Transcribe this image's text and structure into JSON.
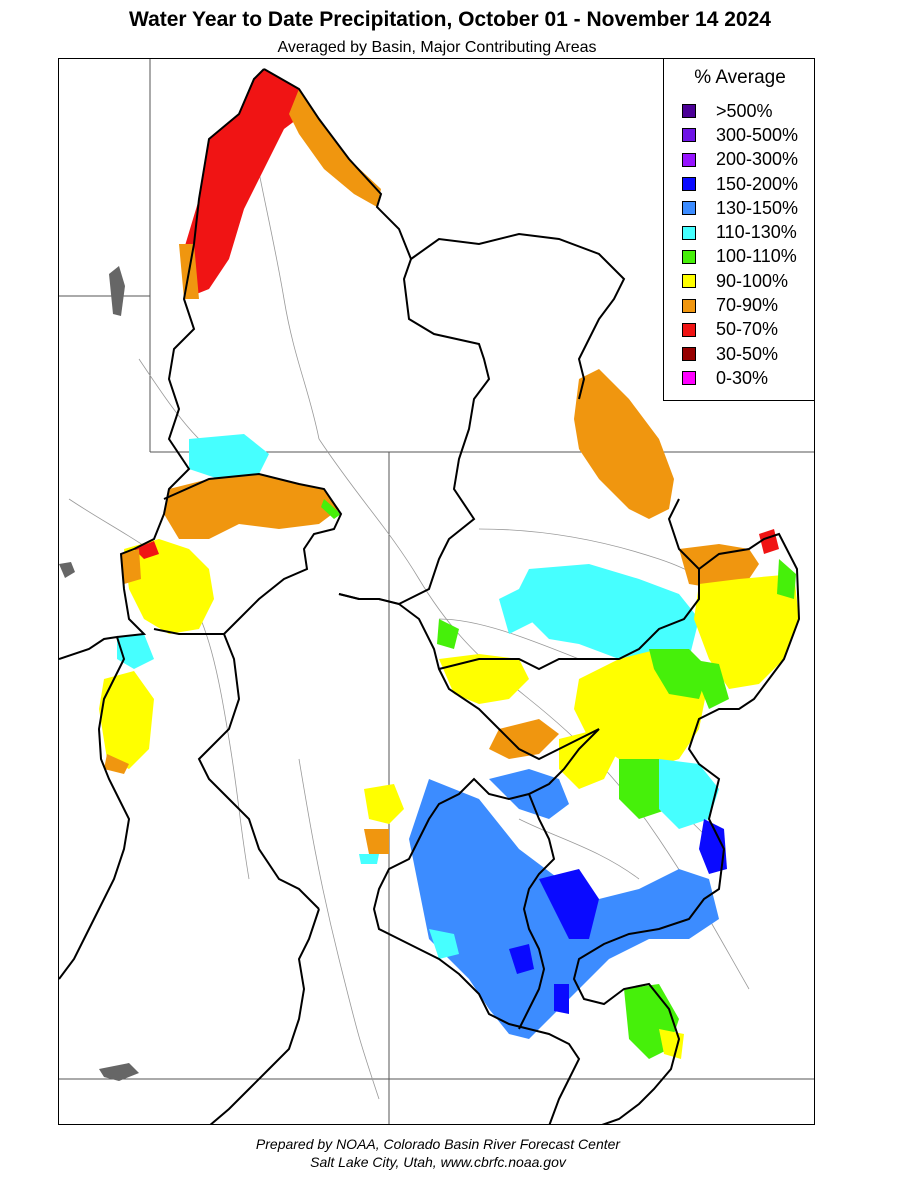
{
  "title": "Water Year to Date Precipitation, October 01  - November 14 2024",
  "subtitle": "Averaged by Basin, Major Contributing Areas",
  "legend": {
    "title": "% Average",
    "items": [
      {
        "label": ">500%",
        "color": "#4b0096"
      },
      {
        "label": "300-500%",
        "color": "#6e14e6"
      },
      {
        "label": "200-300%",
        "color": "#9614ff"
      },
      {
        "label": "150-200%",
        "color": "#0a0aff"
      },
      {
        "label": "130-150%",
        "color": "#3c8cff"
      },
      {
        "label": "110-130%",
        "color": "#46ffff"
      },
      {
        "label": "100-110%",
        "color": "#46f00a"
      },
      {
        "label": "90-100%",
        "color": "#ffff00"
      },
      {
        "label": "70-90%",
        "color": "#f0960f"
      },
      {
        "label": "50-70%",
        "color": "#f01414"
      },
      {
        "label": "30-50%",
        "color": "#960000"
      },
      {
        "label": "0-30%",
        "color": "#ff00ff"
      }
    ]
  },
  "credits": {
    "line1": "Prepared by NOAA, Colorado Basin River Forecast Center",
    "line2": "Salt Lake City, Utah, www.cbrfc.noaa.gov"
  }
}
